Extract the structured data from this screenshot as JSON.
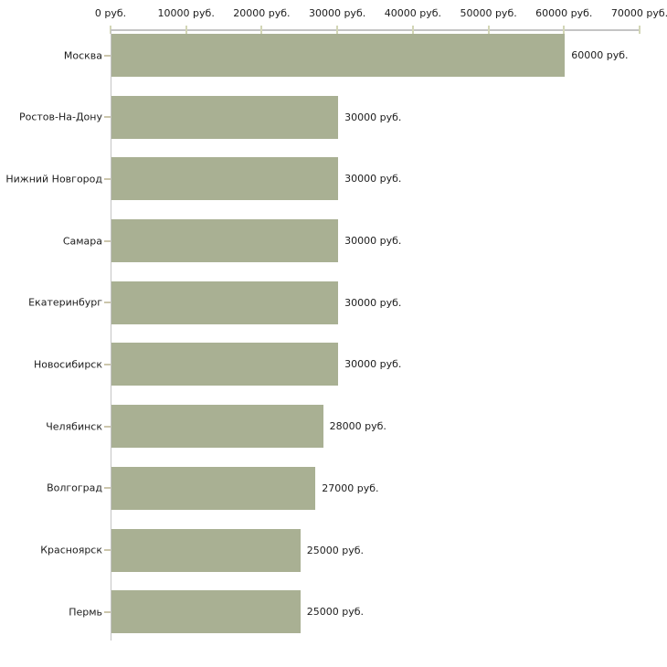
{
  "chart_data": {
    "type": "bar",
    "orientation": "horizontal",
    "categories": [
      "Москва",
      "Ростов-На-Дону",
      "Нижний Новгород",
      "Самара",
      "Екатеринбург",
      "Новосибирск",
      "Челябинск",
      "Волгоград",
      "Красноярск",
      "Пермь"
    ],
    "values": [
      60000,
      30000,
      30000,
      30000,
      30000,
      30000,
      28000,
      27000,
      25000,
      25000
    ],
    "value_labels": [
      "60000 руб.",
      "30000 руб.",
      "30000 руб.",
      "30000 руб.",
      "30000 руб.",
      "30000 руб.",
      "28000 руб.",
      "27000 руб.",
      "25000 руб.",
      "25000 руб."
    ],
    "x_ticks": [
      "0 руб.",
      "10000 руб.",
      "20000 руб.",
      "30000 руб.",
      "40000 руб.",
      "50000 руб.",
      "60000 руб.",
      "70000 руб."
    ],
    "xlim": [
      0,
      70000
    ],
    "ylabel": "",
    "xlabel": "",
    "grid": false,
    "legend_position": "none",
    "bar_color": "#a9b093",
    "axis_line_color": "#c4c4c4",
    "tick_mark_color": "#d3d6b6",
    "text_color": "#1c1c1c"
  }
}
